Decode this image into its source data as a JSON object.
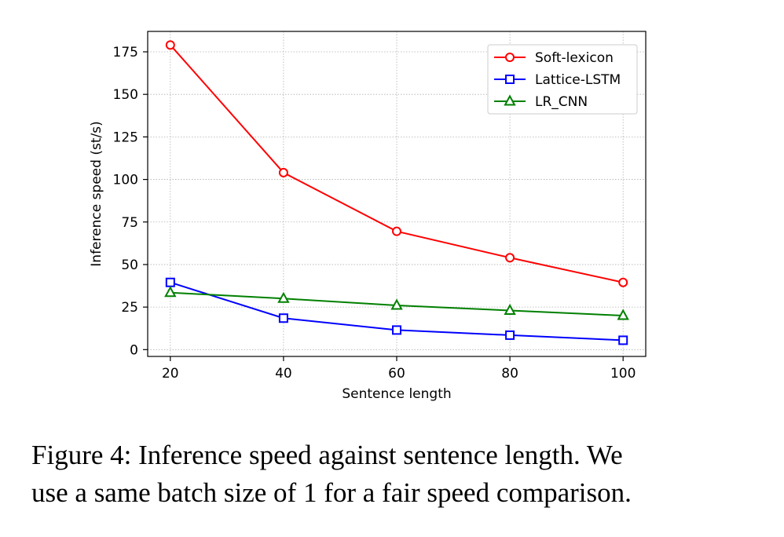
{
  "caption": {
    "line1": "Figure 4: Inference speed against sentence length. We",
    "line2": "use a same batch size of 1 for a fair speed comparison."
  },
  "chart_data": {
    "type": "line",
    "title": "",
    "xlabel": "Sentence length",
    "ylabel": "Inference speed (st/s)",
    "x": [
      20,
      40,
      60,
      80,
      100
    ],
    "xlim": [
      16,
      104
    ],
    "ylim": [
      -4,
      187
    ],
    "xticks": [
      20,
      40,
      60,
      80,
      100
    ],
    "yticks": [
      0,
      25,
      50,
      75,
      100,
      125,
      150,
      175
    ],
    "grid": true,
    "legend_position": "top-right",
    "series": [
      {
        "name": "Soft-lexicon",
        "color": "#ff0000",
        "marker": "circle",
        "values": [
          179,
          104,
          69.5,
          54,
          39.5
        ]
      },
      {
        "name": "Lattice-LSTM",
        "color": "#0000ff",
        "marker": "square",
        "values": [
          39.5,
          18.5,
          11.5,
          8.5,
          5.5
        ]
      },
      {
        "name": "LR_CNN",
        "color": "#008000",
        "marker": "triangle",
        "values": [
          33.5,
          30,
          26,
          23,
          20
        ]
      }
    ]
  }
}
